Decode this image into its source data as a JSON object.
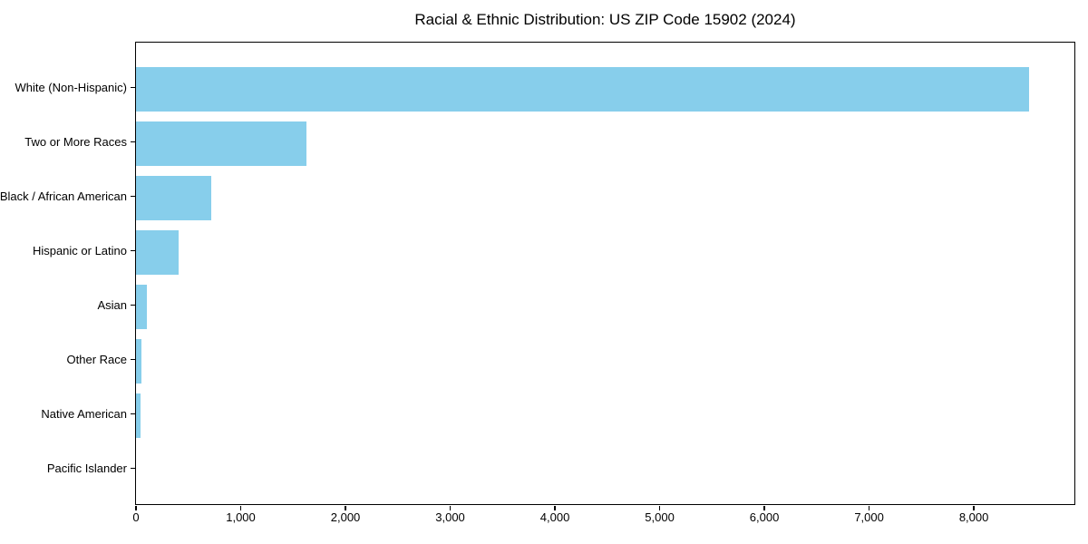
{
  "page": {
    "background_color": "#ffffff",
    "text_color": "#000000"
  },
  "chart_data": {
    "type": "bar",
    "orientation": "horizontal",
    "title": "Racial & Ethnic Distribution: US ZIP Code 15902 (2024)",
    "categories": [
      "White (Non-Hispanic)",
      "Two or More Races",
      "Black / African American",
      "Hispanic or Latino",
      "Asian",
      "Other Race",
      "Native American",
      "Pacific Islander"
    ],
    "values": [
      8530,
      1630,
      720,
      410,
      100,
      50,
      45,
      0
    ],
    "xlabel": "",
    "ylabel": "",
    "xlim": [
      0,
      8960
    ],
    "xticks": [
      0,
      1000,
      2000,
      3000,
      4000,
      5000,
      6000,
      7000,
      8000
    ],
    "xtick_labels": [
      "0",
      "1,000",
      "2,000",
      "3,000",
      "4,000",
      "5,000",
      "6,000",
      "7,000",
      "8,000"
    ],
    "grid": false,
    "legend_position": "none",
    "bar_color": "#87CEEB",
    "spine_color": "#000000",
    "tick_color": "#000000"
  }
}
